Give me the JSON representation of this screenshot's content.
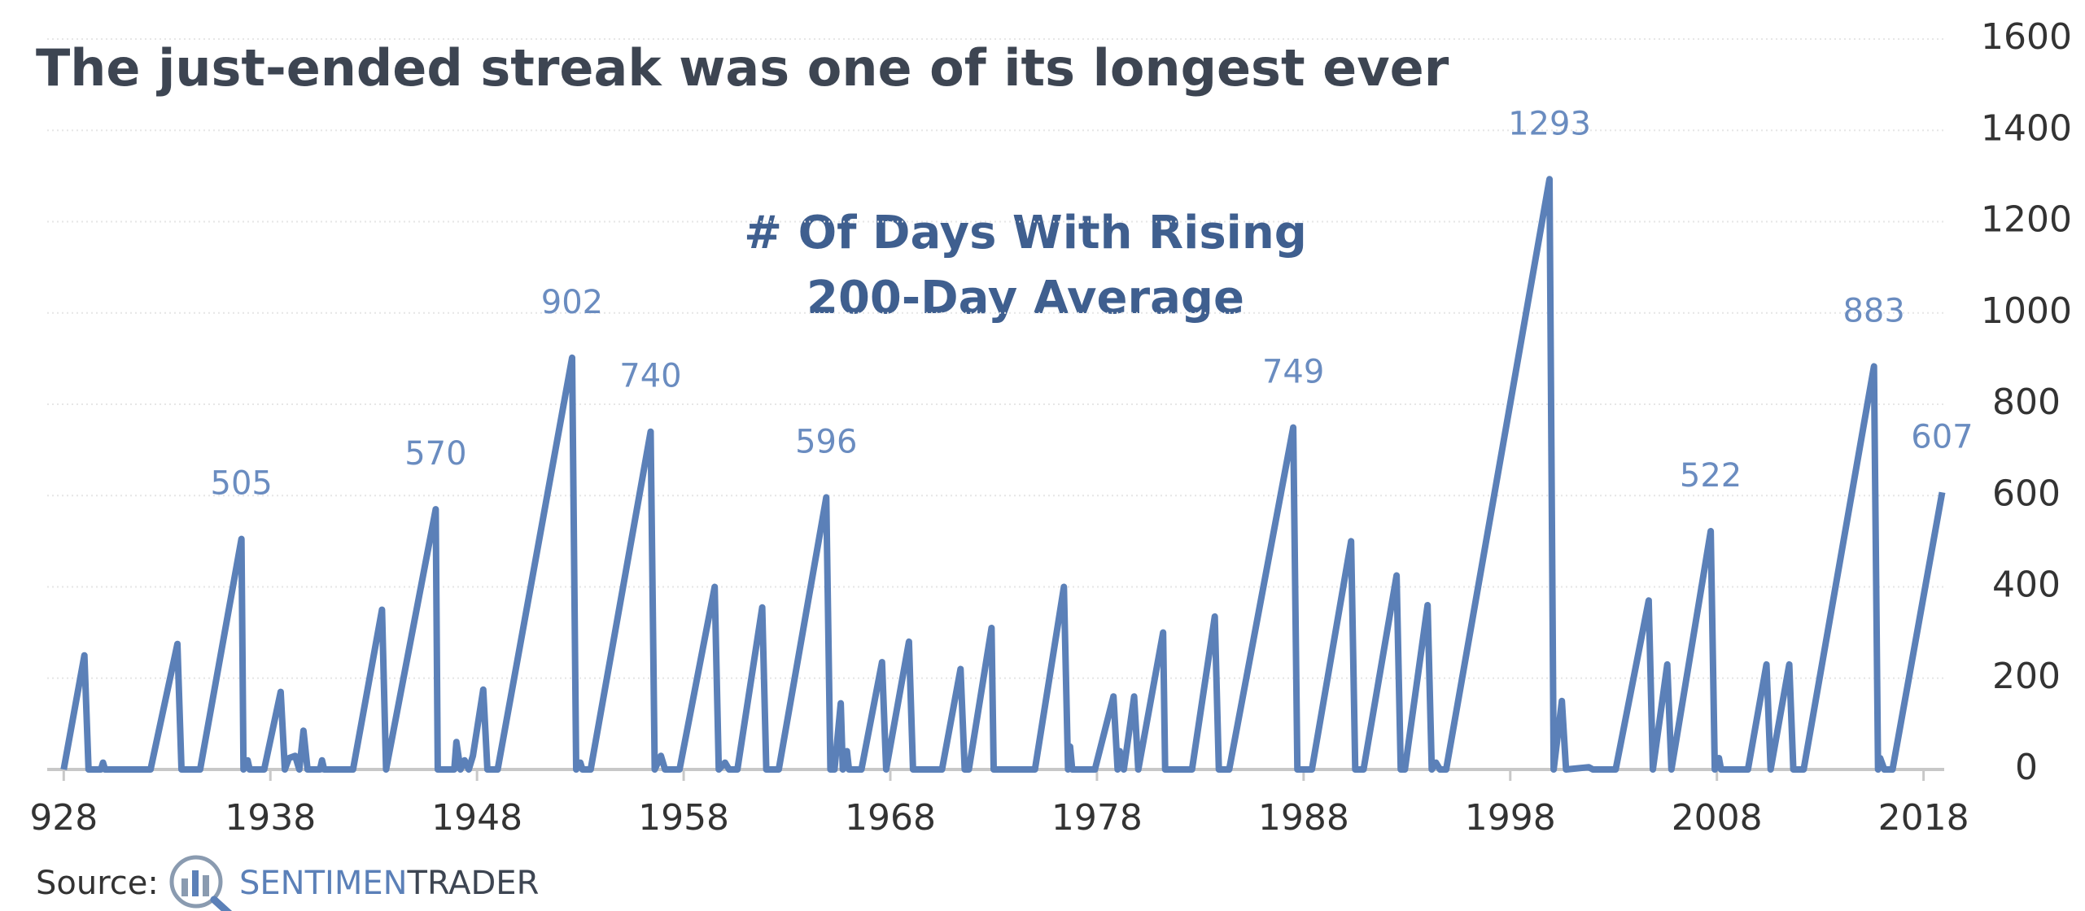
{
  "chart_data": {
    "type": "line",
    "title": "The just-ended streak was one of its longest ever",
    "annotation": [
      "# Of Days With Rising",
      "200-Day Average"
    ],
    "source_label": "Source:",
    "logo": [
      "SENTIMEN",
      "TRADER"
    ],
    "x": [
      1928.0,
      1929.0,
      1929.2,
      1929.8,
      1929.9,
      1930.0,
      1932.2,
      1933.5,
      1933.7,
      1934.6,
      1936.6,
      1936.7,
      1936.9,
      1937.0,
      1937.7,
      1938.5,
      1938.7,
      1938.9,
      1939.2,
      1939.4,
      1939.6,
      1939.8,
      1940.4,
      1940.5,
      1940.6,
      1942.0,
      1943.4,
      1943.6,
      1946.0,
      1946.1,
      1946.9,
      1947.0,
      1947.2,
      1947.4,
      1947.6,
      1947.8,
      1948.3,
      1948.5,
      1949.0,
      1952.6,
      1952.8,
      1953.0,
      1953.1,
      1953.5,
      1956.4,
      1956.6,
      1956.9,
      1957.1,
      1957.8,
      1959.5,
      1959.7,
      1960.0,
      1960.2,
      1960.6,
      1961.8,
      1962.0,
      1962.6,
      1964.9,
      1965.1,
      1965.3,
      1965.6,
      1965.7,
      1965.9,
      1966.0,
      1966.6,
      1967.6,
      1967.8,
      1968.9,
      1969.1,
      1970.5,
      1971.4,
      1971.6,
      1971.8,
      1972.9,
      1973.0,
      1975.0,
      1976.4,
      1976.6,
      1976.7,
      1976.8,
      1977.9,
      1978.8,
      1979.0,
      1979.1,
      1979.3,
      1979.8,
      1980.0,
      1981.2,
      1981.3,
      1982.6,
      1983.7,
      1983.9,
      1984.4,
      1987.5,
      1987.7,
      1988.4,
      1990.3,
      1990.5,
      1990.9,
      1992.5,
      1992.7,
      1992.9,
      1994.0,
      1994.2,
      1994.4,
      1994.6,
      1994.9,
      1999.9,
      2000.1,
      2000.5,
      2000.7,
      2001.8,
      2002.0,
      2003.1,
      2004.7,
      2004.9,
      2005.6,
      2005.8,
      2007.7,
      2007.9,
      2008.1,
      2008.2,
      2009.5,
      2010.4,
      2010.6,
      2011.5,
      2011.7,
      2012.2,
      2015.6,
      2015.8,
      2015.9,
      2016.1,
      2016.5,
      2018.9
    ],
    "series": [
      {
        "color": "#5b80b8",
        "values": [
          0,
          250,
          0,
          0,
          15,
          0,
          0,
          275,
          0,
          0,
          505,
          0,
          20,
          0,
          0,
          170,
          0,
          25,
          30,
          0,
          85,
          0,
          0,
          20,
          0,
          0,
          350,
          0,
          570,
          0,
          0,
          60,
          0,
          20,
          0,
          30,
          175,
          0,
          0,
          902,
          0,
          15,
          0,
          0,
          740,
          0,
          30,
          0,
          0,
          400,
          0,
          15,
          0,
          0,
          355,
          0,
          0,
          596,
          0,
          0,
          145,
          0,
          40,
          0,
          0,
          235,
          0,
          280,
          0,
          0,
          220,
          0,
          0,
          310,
          0,
          0,
          400,
          0,
          50,
          0,
          0,
          160,
          0,
          40,
          0,
          160,
          0,
          300,
          0,
          0,
          335,
          0,
          0,
          749,
          0,
          0,
          500,
          0,
          0,
          425,
          0,
          0,
          360,
          0,
          15,
          0,
          0,
          1293,
          0,
          150,
          0,
          5,
          0,
          0,
          370,
          0,
          230,
          0,
          522,
          0,
          25,
          0,
          0,
          230,
          0,
          230,
          0,
          0,
          883,
          0,
          25,
          0,
          0,
          607
        ],
        "value_labels": [
          null,
          null,
          null,
          null,
          null,
          null,
          null,
          null,
          null,
          null,
          "505",
          null,
          null,
          null,
          null,
          null,
          null,
          null,
          null,
          null,
          null,
          null,
          null,
          null,
          null,
          null,
          null,
          null,
          "570",
          null,
          null,
          null,
          null,
          null,
          null,
          null,
          null,
          null,
          null,
          "902",
          null,
          null,
          null,
          null,
          "740",
          null,
          null,
          null,
          null,
          null,
          null,
          null,
          null,
          null,
          null,
          null,
          null,
          "596",
          null,
          null,
          null,
          null,
          null,
          null,
          null,
          null,
          null,
          null,
          null,
          null,
          null,
          null,
          null,
          null,
          null,
          null,
          null,
          null,
          null,
          null,
          null,
          null,
          null,
          null,
          null,
          null,
          null,
          null,
          null,
          null,
          null,
          null,
          null,
          "749",
          null,
          null,
          null,
          null,
          null,
          null,
          null,
          null,
          null,
          null,
          null,
          null,
          null,
          "1293",
          null,
          null,
          null,
          null,
          null,
          null,
          null,
          null,
          null,
          null,
          "522",
          null,
          null,
          null,
          null,
          null,
          null,
          null,
          null,
          null,
          "883",
          null,
          null,
          null,
          null,
          "607"
        ]
      }
    ],
    "xlim": [
      1927.2,
      2019.0
    ],
    "xticks": [
      {
        "value": 1928,
        "label": "928"
      },
      1938,
      1948,
      1958,
      1968,
      1978,
      1988,
      1998,
      2008,
      2018
    ],
    "ylim": [
      0,
      1600
    ],
    "yticks": [
      0,
      200,
      400,
      600,
      800,
      1000,
      1200,
      1400,
      1600
    ],
    "grid": true
  }
}
